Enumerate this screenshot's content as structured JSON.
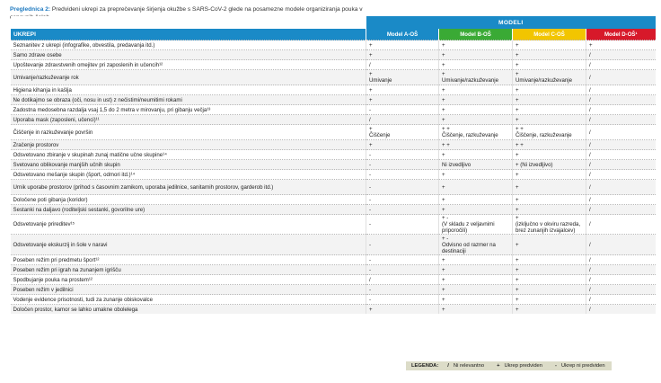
{
  "caption": {
    "label": "Preglednica 2:",
    "text": " Predvideni ukrepi za preprečevanje širjenja okužbe s SARS-CoV-2 glede na posamezne modele organiziranja pouka v osnovnih šolah"
  },
  "header": {
    "models_title": "MODELI",
    "ukrepi": "UKREPI",
    "model_a": "Model A-OŠ",
    "model_b": "Model B-OŠ",
    "model_c": "Model C-OŠ",
    "model_d": "Model D-OŠ¹",
    "colors": {
      "blue": "#1a8ac7",
      "green": "#3aaa35",
      "yellow": "#f2c500",
      "red": "#d7192a"
    }
  },
  "rows": [
    {
      "measure": "Seznanitev z ukrepi (infografike, obvestila, predavanja itd.)",
      "a": "+",
      "b": "+",
      "c": "+",
      "d": "+"
    },
    {
      "measure": "Samo zdrave osebe",
      "a": "+",
      "b": "+",
      "c": "+",
      "d": "/"
    },
    {
      "measure": "Upoštevanje zdravstvenih omejitev pri zaposlenih in učencih¹²",
      "a": "/",
      "b": "+",
      "c": "+",
      "d": "/"
    },
    {
      "measure": "Umivanje/razkuževanje rok",
      "a": "+\nUmivanje",
      "b": "+\nUmivanje/razkuževanje",
      "c": "+\nUmivanje/razkuževanje",
      "d": "/"
    },
    {
      "measure": "Higiena kihanja in kašlja",
      "a": "+",
      "b": "+",
      "c": "+",
      "d": "/"
    },
    {
      "measure": "Ne dotikajmo se obraza (oči, nosu in ust) z nečistimi/neumitimi rokami",
      "a": "+",
      "b": "+",
      "c": "+",
      "d": "/"
    },
    {
      "measure": "Zadostna medosebna razdalja vsaj 1,5 do 2 metra v mirovanju, pri gibanju večja¹³",
      "a": "-",
      "b": "+",
      "c": "+",
      "d": "/"
    },
    {
      "measure": "Uporaba mask (zaposleni, učenci)¹¹",
      "a": "/",
      "b": "+",
      "c": "+",
      "d": "/"
    },
    {
      "measure": "Čiščenje in razkuževanje površin",
      "a": "+\nČiščenje",
      "b": "+ +\nČiščenje, razkuževanje",
      "c": "+ +\nČiščenje, razkuževanje",
      "d": "/"
    },
    {
      "measure": "Zračenje prostorov",
      "a": "+",
      "b": "+ +",
      "c": "+ +",
      "d": "/"
    },
    {
      "measure": "Odsvetovano zbiranje v skupinah zunaj matične učne skupine¹⁴",
      "a": "-",
      "b": "+",
      "c": "+",
      "d": "/"
    },
    {
      "measure": "Svetovano oblikovanje manjših učnih skupin",
      "a": "-",
      "b": "Ni izvedljivo",
      "c": "+ (Ni izvedljivo)",
      "d": "/"
    },
    {
      "measure": "Odsvetovano mešanje skupin (šport, odmori itd.)¹⁴",
      "a": "-",
      "b": "+",
      "c": "+",
      "d": "/"
    },
    {
      "measure": "Urnik uporabe prostorov (prihod s časovnim zamikom, uporaba jedilnice, sanitarnih prostorov, garderob itd.)",
      "a": "-",
      "b": "+",
      "c": "+",
      "d": "/"
    },
    {
      "measure": "Določene poti gibanja (koridor)",
      "a": "-",
      "b": "+",
      "c": "+",
      "d": "/"
    },
    {
      "measure": "Sestanki na daljavo (roditeljski sestanki, govorilne ure)",
      "a": "-",
      "b": "+",
      "c": "+",
      "d": "/"
    },
    {
      "measure": "Odsvetovanje prireditev¹⁵",
      "a": "-",
      "b": "+ -\n(V skladu z veljavnimi priporočili)",
      "c": "+\n(izključno v okviru razreda, brez zunanjih izvajalcev)",
      "d": "/"
    },
    {
      "measure": "Odsvetovanje ekskurzij in šole v naravi",
      "a": "-",
      "b": "+ -\nOdvisno od razmer na destinaciji",
      "c": "+",
      "d": "/"
    },
    {
      "measure": "Poseben režim pri predmetu šport¹²",
      "a": "-",
      "b": "+",
      "c": "+",
      "d": "/"
    },
    {
      "measure": "Poseben režim pri igrah na zunanjem igrišču",
      "a": "-",
      "b": "+",
      "c": "+",
      "d": "/"
    },
    {
      "measure": "Spodbujanje pouka na prostem¹²",
      "a": "/",
      "b": "+",
      "c": "+",
      "d": "/"
    },
    {
      "measure": "Poseben režim v jedilnici",
      "a": "-",
      "b": "+",
      "c": "+",
      "d": "/"
    },
    {
      "measure": "Vodenje evidence prisotnosti, tudi za zunanje obiskovalce",
      "a": "-",
      "b": "+",
      "c": "+",
      "d": "/"
    },
    {
      "measure": "Določen prostor, kamor se lahko umakne obolelega",
      "a": "+",
      "b": "+",
      "c": "+",
      "d": "/"
    }
  ],
  "legend": {
    "title": "LEGENDA:",
    "items": [
      {
        "symbol": "/",
        "text": "Ni relevantno"
      },
      {
        "symbol": "+",
        "text": "Ukrep predviden"
      },
      {
        "symbol": "-",
        "text": "Ukrep ni predviden"
      }
    ]
  }
}
